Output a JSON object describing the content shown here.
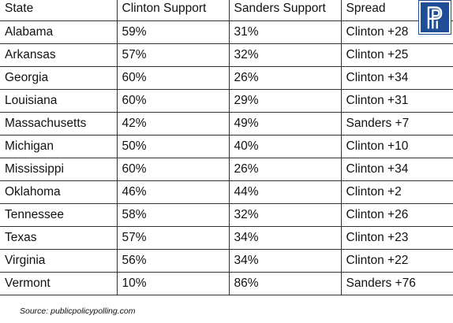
{
  "table": {
    "headers": [
      "State",
      "Clinton Support",
      "Sanders Support",
      "Spread"
    ],
    "rows": [
      [
        "Alabama",
        "59%",
        "31%",
        "Clinton +28"
      ],
      [
        "Arkansas",
        "57%",
        "32%",
        "Clinton +25"
      ],
      [
        "Georgia",
        "60%",
        "26%",
        "Clinton +34"
      ],
      [
        "Louisiana",
        "60%",
        "29%",
        "Clinton +31"
      ],
      [
        "Massachusetts",
        "42%",
        "49%",
        "Sanders +7"
      ],
      [
        "Michigan",
        "50%",
        "40%",
        "Clinton +10"
      ],
      [
        "Mississippi",
        "60%",
        "26%",
        "Clinton +34"
      ],
      [
        "Oklahoma",
        "46%",
        "44%",
        "Clinton +2"
      ],
      [
        "Tennessee",
        "58%",
        "32%",
        "Clinton +26"
      ],
      [
        "Texas",
        "57%",
        "34%",
        "Clinton +23"
      ],
      [
        "Virginia",
        "56%",
        "34%",
        "Clinton +22"
      ],
      [
        "Vermont",
        "10%",
        "86%",
        "Sanders +76"
      ]
    ]
  },
  "logo": {
    "icon": "ppp-logo-icon",
    "color": "#1f4e96"
  },
  "source": "Source: publicpolicypolling.com"
}
